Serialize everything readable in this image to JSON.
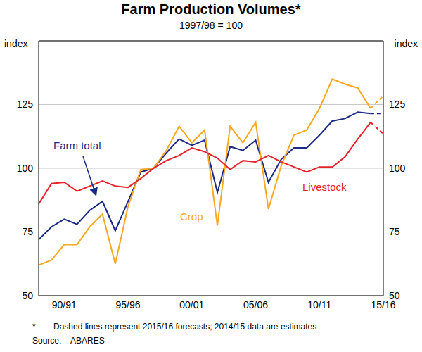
{
  "chart_data": {
    "type": "line",
    "title": "Farm Production Volumes*",
    "subtitle": "1997/98 = 100",
    "ylabel": "index",
    "y2label": "index",
    "categories": [
      null,
      null,
      "90/91",
      null,
      null,
      null,
      null,
      "95/96",
      null,
      null,
      null,
      null,
      "00/01",
      null,
      null,
      null,
      null,
      "05/06",
      null,
      null,
      null,
      null,
      "10/11",
      null,
      null,
      null,
      null,
      "15/16"
    ],
    "forecast": [
      false,
      false,
      false,
      false,
      false,
      false,
      false,
      false,
      false,
      false,
      false,
      false,
      false,
      false,
      false,
      false,
      false,
      false,
      false,
      false,
      false,
      false,
      false,
      false,
      false,
      false,
      false,
      true
    ],
    "series": [
      {
        "name": "Farm total",
        "color": "#1b2a84",
        "values": [
          72,
          77,
          80,
          78,
          83.5,
          87,
          75.5,
          87,
          98.5,
          100,
          106,
          111.5,
          109,
          111,
          90.5,
          108.5,
          107,
          111,
          94.5,
          103.5,
          108,
          108,
          113,
          118.5,
          119.5,
          122,
          121.5,
          121.5
        ]
      },
      {
        "name": "Crop",
        "color": "#f7a823",
        "values": [
          62,
          64,
          70,
          70,
          77,
          82,
          62.5,
          85,
          99.5,
          100,
          107,
          116.5,
          110,
          115,
          77.5,
          116.5,
          110,
          118,
          84,
          101,
          113,
          115,
          123.5,
          135,
          133,
          131.5,
          123.5,
          128.5
        ]
      },
      {
        "name": "Livestock",
        "color": "#e5222a",
        "values": [
          86,
          94,
          94.5,
          91,
          93,
          95,
          93,
          92.5,
          96,
          100,
          103,
          105,
          108,
          106.5,
          104,
          99.5,
          103,
          102.5,
          105,
          102.5,
          100.5,
          98.5,
          100.5,
          100.5,
          104.5,
          111.5,
          118,
          113.5
        ]
      }
    ],
    "ylim": [
      50,
      150
    ],
    "yticks": [
      50,
      75,
      100,
      125
    ],
    "y2lim": [
      50,
      150
    ],
    "y2ticks": [
      50,
      75,
      100,
      125
    ],
    "grid": true,
    "footnote": {
      "mark": "*",
      "text": "Dashed lines represent 2015/16 forecasts; 2014/15 data are estimates"
    },
    "source": {
      "label": "Source:",
      "text": "ABARES"
    }
  }
}
